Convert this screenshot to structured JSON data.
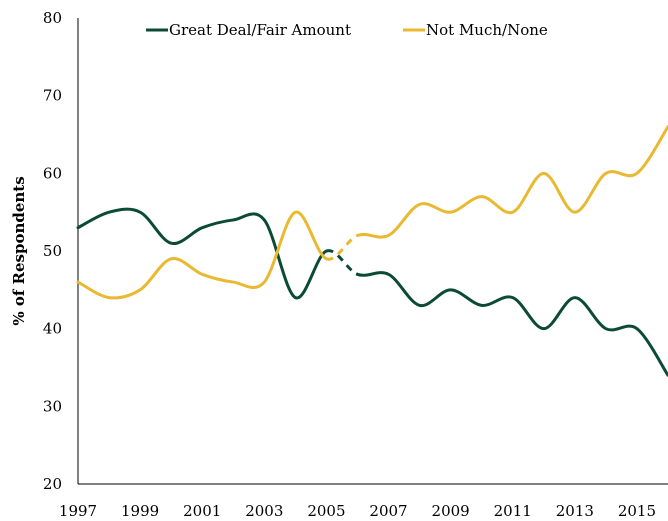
{
  "chart_data": {
    "type": "line",
    "title": "",
    "xlabel": "",
    "ylabel": "% of Respondents",
    "xlim": [
      1997,
      2016
    ],
    "ylim": [
      20,
      80
    ],
    "x": [
      1997,
      1998,
      1999,
      2000,
      2001,
      2002,
      2003,
      2004,
      2005,
      2006,
      2007,
      2008,
      2009,
      2010,
      2011,
      2012,
      2013,
      2014,
      2015,
      2016
    ],
    "x_ticks": [
      "1997",
      "1999",
      "2001",
      "2003",
      "2005",
      "2007",
      "2009",
      "2011",
      "2013",
      "2015"
    ],
    "y_ticks": [
      "20",
      "30",
      "40",
      "50",
      "60",
      "70",
      "80"
    ],
    "grid": false,
    "legend_position": "top",
    "dashed_segment": [
      2005,
      2006
    ],
    "series": [
      {
        "name": "Great Deal/Fair Amount",
        "color": "#0b4a36",
        "values": [
          53,
          55,
          55,
          51,
          53,
          54,
          54,
          44,
          50,
          47,
          47,
          43,
          45,
          43,
          44,
          40,
          44,
          40,
          40,
          34
        ]
      },
      {
        "name": "Not Much/None",
        "color": "#e8b931",
        "values": [
          46,
          44,
          45,
          49,
          47,
          46,
          46,
          55,
          49,
          52,
          52,
          56,
          55,
          57,
          55,
          60,
          55,
          60,
          60,
          66
        ]
      }
    ]
  }
}
